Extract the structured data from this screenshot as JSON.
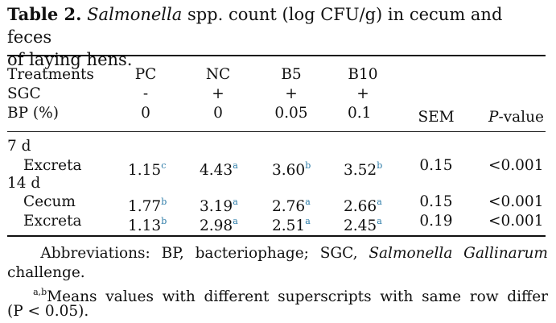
{
  "table": {
    "label": "Table 2.",
    "organism": "Salmonella",
    "title_rest_line1": "spp. count (log CFU/g) in cecum and feces",
    "title_line2": "of laying hens.",
    "header": {
      "treatments": "Treatments",
      "sgc": "SGC",
      "bp": "BP (%)",
      "sem": "SEM",
      "p_italic": "P",
      "p_rest": "-value"
    },
    "groups": [
      "PC",
      "NC",
      "B5",
      "B10"
    ],
    "sgc_values": [
      "-",
      "+",
      "+",
      "+"
    ],
    "bp_values": [
      "0",
      "0",
      "0.05",
      "0.1"
    ],
    "sections": [
      {
        "label": "7 d",
        "rows": [
          {
            "name": "Excreta",
            "values": [
              "1.15",
              "4.43",
              "3.60",
              "3.52"
            ],
            "sups": [
              "c",
              "a",
              "b",
              "b"
            ],
            "sem": "0.15",
            "p": "<0.001"
          }
        ]
      },
      {
        "label": "14 d",
        "rows": [
          {
            "name": "Cecum",
            "values": [
              "1.77",
              "3.19",
              "2.76",
              "2.66"
            ],
            "sups": [
              "b",
              "a",
              "a",
              "a"
            ],
            "sem": "0.15",
            "p": "<0.001"
          },
          {
            "name": "Excreta",
            "values": [
              "1.13",
              "2.98",
              "2.51",
              "2.45"
            ],
            "sups": [
              "b",
              "a",
              "a",
              "a"
            ],
            "sem": "0.19",
            "p": "<0.001"
          }
        ]
      }
    ],
    "footnote": {
      "abbrev_pre": "Abbreviations: BP, bacteriophage; SGC,",
      "abbrev_italic": "Salmonella Gallinarum",
      "abbrev_post": "challenge.",
      "means_sup": "a,b",
      "means_line1": "Means values with different superscripts with same row differ",
      "means_line2": "(P < 0.05)."
    }
  }
}
